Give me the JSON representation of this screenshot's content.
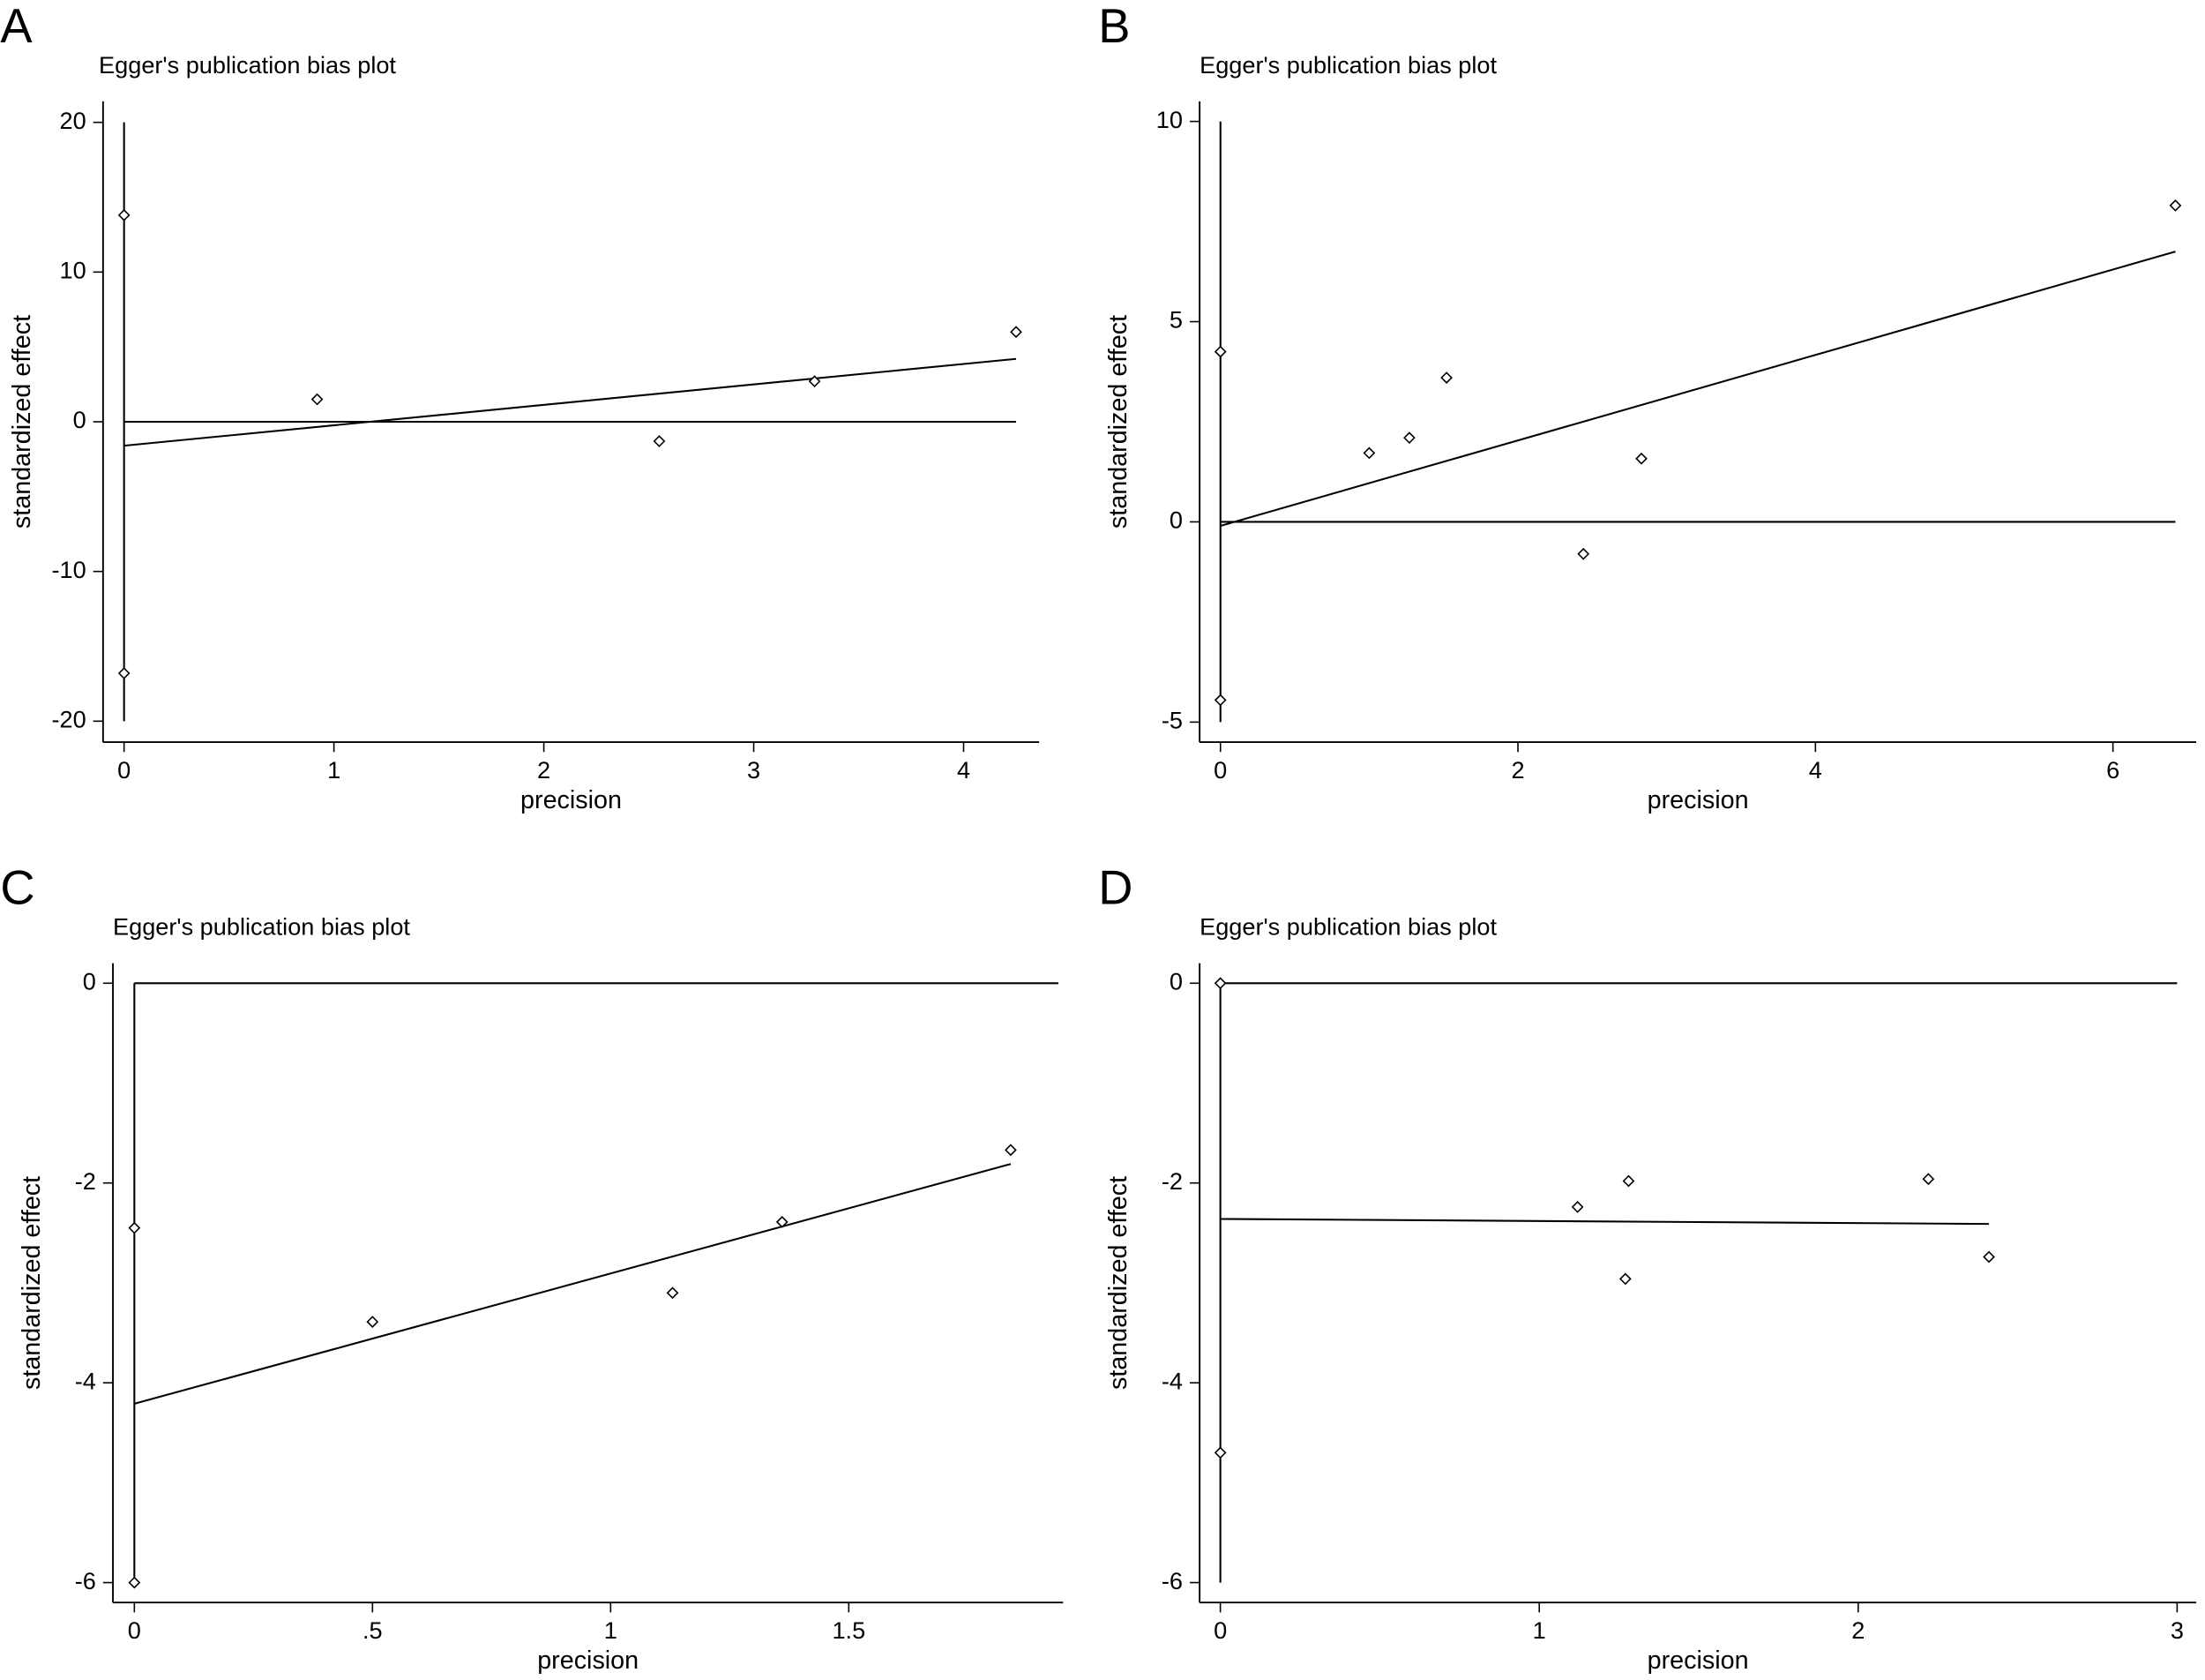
{
  "chart_data": [
    {
      "type": "scatter",
      "panel": "A",
      "title": "Egger's publication bias plot",
      "xlabel": "precision",
      "ylabel": "standardized effect",
      "x": [
        0,
        0,
        0.92,
        2.55,
        3.29,
        4.25
      ],
      "values": [
        13.8,
        -16.8,
        1.5,
        -1.3,
        2.7,
        6.0
      ],
      "lines": [
        {
          "x": [
            0,
            4.25
          ],
          "values": [
            -1.6,
            4.2
          ]
        },
        {
          "x": [
            0,
            4.25
          ],
          "values": [
            0,
            0
          ]
        },
        {
          "x": [
            0,
            0
          ],
          "values": [
            -20,
            20
          ]
        }
      ],
      "xlim": [
        -0.1,
        4.36
      ],
      "ylim": [
        -21.4,
        21.4
      ],
      "xticks": [
        0,
        1,
        2,
        3,
        4
      ],
      "yticks": [
        -20,
        -10,
        0,
        10,
        20
      ],
      "color": "#000000"
    },
    {
      "type": "scatter",
      "panel": "B",
      "title": "Egger's publication bias plot",
      "xlabel": "precision",
      "ylabel": "standardized effect",
      "x": [
        0,
        0,
        1.0,
        1.27,
        1.52,
        2.44,
        2.83,
        6.42
      ],
      "values": [
        4.25,
        -4.45,
        1.72,
        2.1,
        3.6,
        -0.8,
        1.58,
        7.9
      ],
      "lines": [
        {
          "x": [
            0,
            6.42
          ],
          "values": [
            -0.1,
            6.75
          ]
        },
        {
          "x": [
            0,
            6.42
          ],
          "values": [
            0,
            0
          ]
        },
        {
          "x": [
            0,
            0
          ],
          "values": [
            -5,
            10
          ]
        }
      ],
      "xlim": [
        -0.14,
        6.56
      ],
      "ylim": [
        -5.5,
        10.5
      ],
      "xticks": [
        0,
        2,
        4,
        6
      ],
      "yticks": [
        -5,
        0,
        5,
        10
      ],
      "color": "#000000"
    },
    {
      "type": "scatter",
      "panel": "C",
      "title": "Egger's publication bias plot",
      "xlabel": "precision",
      "ylabel": "standardized effect",
      "x": [
        0,
        0,
        0.5,
        1.13,
        1.36,
        1.84
      ],
      "values": [
        -2.45,
        -6.0,
        -3.39,
        -3.1,
        -2.39,
        -1.67
      ],
      "lines": [
        {
          "x": [
            0,
            1.84
          ],
          "values": [
            -4.21,
            -1.81
          ]
        },
        {
          "x": [
            0,
            1.94
          ],
          "values": [
            0,
            0
          ]
        },
        {
          "x": [
            0,
            0
          ],
          "values": [
            -6,
            0
          ]
        }
      ],
      "xlim": [
        -0.045,
        1.95
      ],
      "ylim": [
        -6.2,
        0.2
      ],
      "xticks": [
        0,
        {
          "value": 0.5,
          "label": ".5"
        },
        1,
        1.5
      ],
      "yticks": [
        -6,
        -4,
        -2,
        0
      ],
      "color": "#000000"
    },
    {
      "type": "scatter",
      "panel": "D",
      "title": "Egger's publication bias plot",
      "xlabel": "precision",
      "ylabel": "standardized effect",
      "x": [
        0,
        0,
        1.12,
        1.28,
        1.27,
        2.22,
        2.41
      ],
      "values": [
        0,
        -4.7,
        -2.24,
        -1.98,
        -2.96,
        -1.96,
        -2.74
      ],
      "lines": [
        {
          "x": [
            0,
            2.41
          ],
          "values": [
            -2.36,
            -2.41
          ]
        },
        {
          "x": [
            0,
            3
          ],
          "values": [
            0,
            0
          ]
        },
        {
          "x": [
            0,
            0
          ],
          "values": [
            -6,
            0
          ]
        }
      ],
      "xlim": [
        -0.065,
        3.06
      ],
      "ylim": [
        -6.2,
        0.2
      ],
      "xticks": [
        0,
        1,
        2,
        3
      ],
      "yticks": [
        -6,
        -4,
        -2,
        0
      ],
      "color": "#000000"
    }
  ]
}
